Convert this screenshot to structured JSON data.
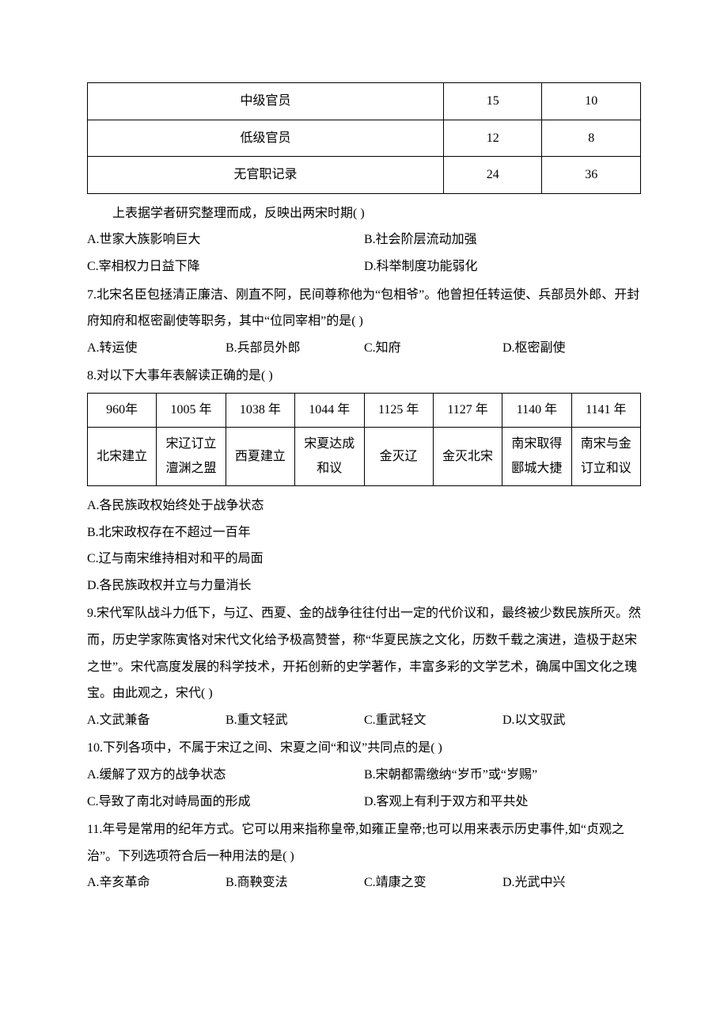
{
  "table1": {
    "rows": [
      [
        "中级官员",
        "15",
        "10"
      ],
      [
        "低级官员",
        "12",
        "8"
      ],
      [
        "无官职记录",
        "24",
        "36"
      ]
    ]
  },
  "intro_after_t1": "上表据学者研究整理而成，反映出两宋时期(   )",
  "q6_opts": {
    "a": "A.世家大族影响巨大",
    "b": "B.社会阶层流动加强",
    "c": "C.宰相权力日益下降",
    "d": "D.科举制度功能弱化"
  },
  "q7_text": "7.北宋名臣包拯清正廉洁、刚直不阿，民间尊称他为“包相爷”。他曾担任转运使、兵部员外郎、开封府知府和枢密副使等职务，其中“位同宰相”的是(   )",
  "q7_opts": {
    "a": "A.转运使",
    "b": "B.兵部员外郎",
    "c": "C.知府",
    "d": "D.枢密副使"
  },
  "q8_text": "8.对以下大事年表解读正确的是(   )",
  "table2": {
    "row1": [
      "960年",
      "1005 年",
      "1038 年",
      "1044 年",
      "1125 年",
      "1127 年",
      "1140 年",
      "1141 年"
    ],
    "row2": [
      "北宋建立",
      "宋辽订立澶渊之盟",
      "西夏建立",
      "宋夏达成和议",
      "金灭辽",
      "金灭北宋",
      "南宋取得郾城大捷",
      "南宋与金订立和议"
    ]
  },
  "q8_opts": {
    "a": "A.各民族政权始终处于战争状态",
    "b": "B.北宋政权存在不超过一百年",
    "c": "C.辽与南宋维持相对和平的局面",
    "d": "D.各民族政权并立与力量消长"
  },
  "q9_text": "9.宋代军队战斗力低下，与辽、西夏、金的战争往往付出一定的代价议和，最终被少数民族所灭。然而，历史学家陈寅恪对宋代文化给予极高赞誉，称“华夏民族之文化，历数千载之演进，造极于赵宋之世”。宋代高度发展的科学技术，开拓创新的史学著作，丰富多彩的文学艺术，确属中国文化之瑰宝。由此观之，宋代(   )",
  "q9_opts": {
    "a": "A.文武兼备",
    "b": "B.重文轻武",
    "c": "C.重武轻文",
    "d": "D.以文驭武"
  },
  "q10_text": "10.下列各项中，不属于宋辽之间、宋夏之间“和议”共同点的是(   )",
  "q10_opts": {
    "a": "A.缓解了双方的战争状态",
    "b": "B.宋朝都需缴纳“岁币”或“岁赐”",
    "c": "C.导致了南北对峙局面的形成",
    "d": "D.客观上有利于双方和平共处"
  },
  "q11_text": "11.年号是常用的纪年方式。它可以用来指称皇帝,如雍正皇帝;也可以用来表示历史事件,如“贞观之治”。下列选项符合后一种用法的是(   )",
  "q11_opts": {
    "a": "A.辛亥革命",
    "b": "B.商鞅变法",
    "c": "C.靖康之变",
    "d": "D.光武中兴"
  }
}
